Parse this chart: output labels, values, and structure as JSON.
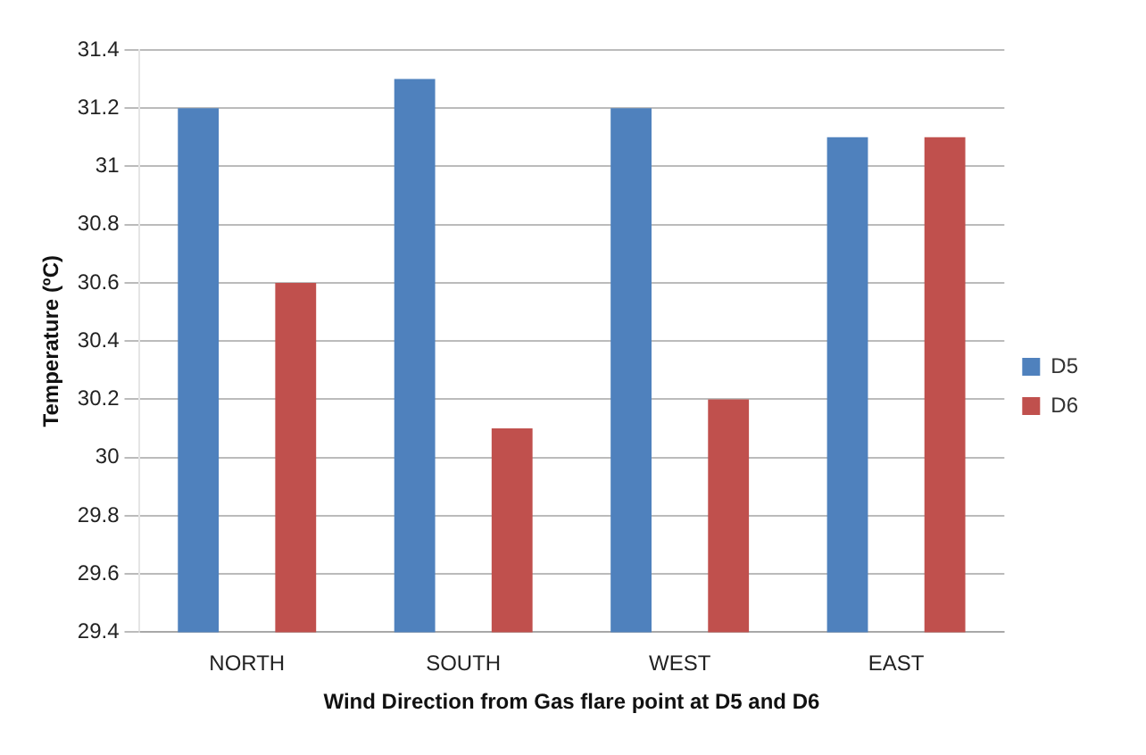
{
  "chart_data": {
    "type": "bar",
    "xlabel": "Wind Direction from Gas flare point at D5 and D6",
    "ylabel": "Temperature (ºC)",
    "categories": [
      "NORTH",
      "SOUTH",
      "WEST",
      "EAST"
    ],
    "series": [
      {
        "name": "D5",
        "color": "#4f81bd",
        "values": [
          31.2,
          31.3,
          31.2,
          31.1
        ]
      },
      {
        "name": "D6",
        "color": "#c0504d",
        "values": [
          30.6,
          30.1,
          30.2,
          31.1
        ]
      }
    ],
    "ylim": [
      29.4,
      31.4
    ],
    "yticks": [
      29.4,
      29.6,
      29.8,
      30,
      30.2,
      30.4,
      30.6,
      30.8,
      31,
      31.2,
      31.4
    ],
    "grid": "y",
    "legend": "right"
  }
}
